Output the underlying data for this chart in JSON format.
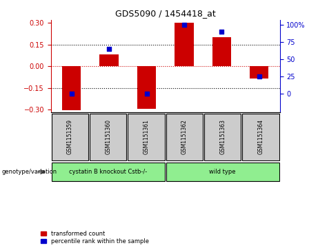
{
  "title": "GDS5090 / 1454418_at",
  "samples": [
    "GSM1151359",
    "GSM1151360",
    "GSM1151361",
    "GSM1151362",
    "GSM1151363",
    "GSM1151364"
  ],
  "red_values": [
    -0.305,
    0.08,
    -0.295,
    0.3,
    0.2,
    -0.085
  ],
  "blue_percentiles": [
    0,
    65,
    0,
    100,
    90,
    25
  ],
  "ylim": [
    -0.32,
    0.32
  ],
  "yticks_left": [
    -0.3,
    -0.15,
    0,
    0.15,
    0.3
  ],
  "yticks_right": [
    0,
    25,
    50,
    75,
    100
  ],
  "right_ylim": [
    -26.67,
    106.67
  ],
  "dotted_lines_black": [
    -0.15,
    0.15
  ],
  "dotted_line_red": 0.0,
  "red_color": "#cc0000",
  "blue_color": "#0000cc",
  "bar_width": 0.5,
  "group1_label": "cystatin B knockout Cstb-/-",
  "group2_label": "wild type",
  "group_color": "#90ee90",
  "genotype_label": "genotype/variation",
  "legend_red": "transformed count",
  "legend_blue": "percentile rank within the sample",
  "title_fontsize": 9,
  "tick_fontsize": 7,
  "label_fontsize": 6,
  "sample_label_fontsize": 5.5
}
